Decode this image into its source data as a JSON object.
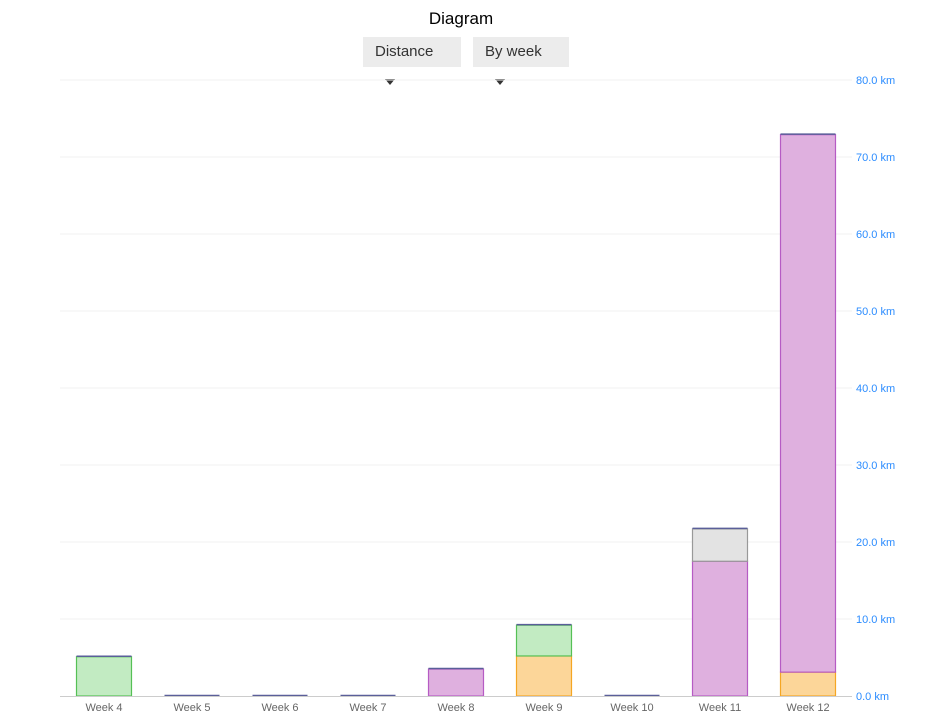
{
  "title": "Diagram",
  "controls": {
    "metric": "Distance",
    "period": "By week"
  },
  "chart_data": {
    "type": "bar",
    "stacked": true,
    "categories": [
      "Week 4",
      "Week 5",
      "Week 6",
      "Week 7",
      "Week 8",
      "Week 9",
      "Week 10",
      "Week 11",
      "Week 12"
    ],
    "series": [
      {
        "color": "#fcd699",
        "stroke": "#f5a623",
        "values": [
          0,
          0,
          0,
          0,
          0,
          5.2,
          0,
          0,
          3.1
        ]
      },
      {
        "color": "#dfb0df",
        "stroke": "#b65bc4",
        "values": [
          0,
          0,
          0,
          0,
          3.5,
          0,
          0,
          17.5,
          69.8
        ]
      },
      {
        "color": "#c2ebc2",
        "stroke": "#55c055",
        "values": [
          5.1,
          0,
          0,
          0,
          0,
          4.0,
          0,
          0,
          0
        ]
      },
      {
        "color": "#e3e3e3",
        "stroke": "#999999",
        "values": [
          0,
          0,
          0,
          0,
          0,
          0,
          0,
          4.2,
          0
        ]
      }
    ],
    "ylim": [
      0,
      80
    ],
    "yticks": [
      "0.0 km",
      "10.0 km",
      "20.0 km",
      "30.0 km",
      "40.0 km",
      "50.0 km",
      "60.0 km",
      "70.0 km",
      "80.0 km"
    ],
    "ytick_values": [
      0,
      10,
      20,
      30,
      40,
      50,
      60,
      70,
      80
    ],
    "yaxis_position": "right",
    "tick_color": "#2b8cff",
    "grid": true
  }
}
